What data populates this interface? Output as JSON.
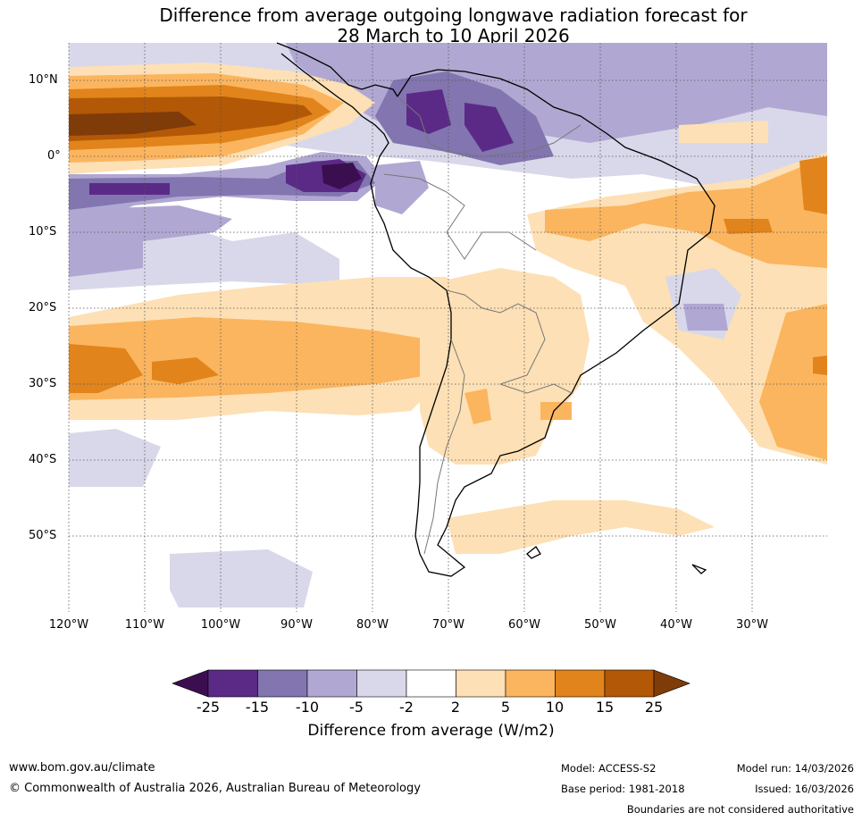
{
  "title": {
    "line1": "Difference from average outgoing longwave radiation forecast for",
    "line2": "28 March to 10 April 2026"
  },
  "map": {
    "latitude_labels": [
      "10°N",
      "0°",
      "10°S",
      "20°S",
      "30°S",
      "40°S",
      "50°S"
    ],
    "longitude_labels": [
      "120°W",
      "110°W",
      "100°W",
      "90°W",
      "80°W",
      "70°W",
      "60°W",
      "50°W",
      "40°W",
      "30°W"
    ]
  },
  "colorbar": {
    "ticks": [
      "-25",
      "-15",
      "-10",
      "-5",
      "-2",
      "2",
      "5",
      "10",
      "15",
      "25"
    ],
    "label": "Difference from average (W/m2)",
    "colors": [
      "#3b0f4f",
      "#5b2a86",
      "#8275b0",
      "#b0a8d2",
      "#d9d8ea",
      "#ffffff",
      "#fde0b5",
      "#fbb55f",
      "#e1841b",
      "#b35806",
      "#7f3b08"
    ]
  },
  "footer": {
    "website": "www.bom.gov.au/climate",
    "copyright": "© Commonwealth of Australia 2026, Australian Bureau of Meteorology",
    "model": "Model: ACCESS-S2",
    "base_period": "Base period: 1981-2018",
    "model_run": "Model run: 14/03/2026",
    "issued": "Issued: 16/03/2026",
    "disclaimer": "Boundaries are not considered authoritative"
  }
}
